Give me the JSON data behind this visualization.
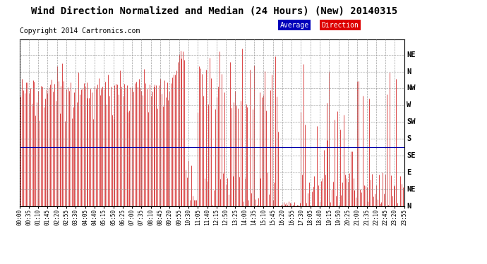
{
  "title": "Wind Direction Normalized and Median (24 Hours) (New) 20140315",
  "copyright": "Copyright 2014 Cartronics.com",
  "background_color": "#ffffff",
  "plot_bg_color": "#ffffff",
  "grid_color": "#aaaaaa",
  "y_labels": [
    "NE",
    "N",
    "NW",
    "W",
    "SW",
    "S",
    "SE",
    "E",
    "NE",
    "N"
  ],
  "y_positions": [
    9,
    8,
    7,
    6,
    5,
    4,
    3,
    2,
    1,
    0
  ],
  "blue_line_y": 3.5,
  "legend_avg_bg": "#0000bb",
  "legend_dir_bg": "#dd0000",
  "legend_text_color": "#ffffff",
  "red_line_color": "#cc0000",
  "blue_avg_color": "#0000aa",
  "title_fontsize": 11,
  "copyright_fontsize": 7,
  "n_points": 288
}
